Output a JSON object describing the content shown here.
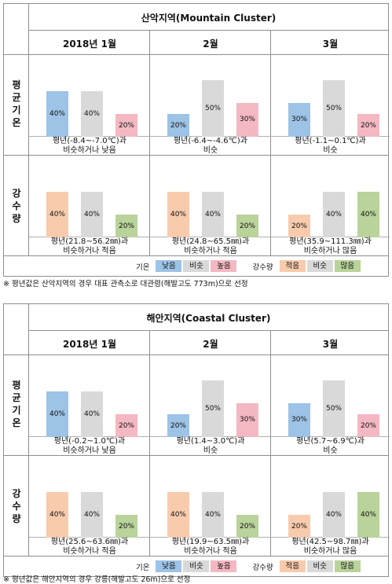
{
  "colors": {
    "low": "#9dc3e6",
    "similar": "#d9d9d9",
    "high": "#f4b8c2",
    "small": "#f8cbad",
    "large": "#b9d39b"
  },
  "legend": {
    "temp_title": "기온",
    "temp_items": [
      "낮음",
      "비슷",
      "높음"
    ],
    "rain_title": "강수량",
    "rain_items": [
      "적음",
      "비슷",
      "많음"
    ]
  },
  "row_labels": {
    "temp": [
      "평",
      "균",
      "기",
      "온"
    ],
    "rain": [
      "강",
      "수",
      "량"
    ]
  },
  "months": [
    "2018년  1월",
    "2월",
    "3월"
  ],
  "sections": [
    {
      "title": "산악지역(Mountain  Cluster)",
      "temp_captions": [
        [
          "평년(-8.4~-7.0℃)과",
          "비슷하거나 낮음"
        ],
        [
          "평년(-6.4~-4.6℃)과",
          "비슷"
        ],
        [
          "평년(-1.1~0.1℃)과",
          "비슷"
        ]
      ],
      "rain_captions": [
        [
          "평년(21.8~56.2㎜)과",
          "비슷하거나  적음"
        ],
        [
          "평년(24.8~65.5㎜)과",
          "비슷하거나  적음"
        ],
        [
          "평년(35.9~111.3㎜)과",
          "비슷하거나  많음"
        ]
      ],
      "note": "※ 평년값은 산악지역의 경우 대표 관측소로 대관령(해발고도 773m)으로 선정"
    },
    {
      "title": "해안지역(Coastal Cluster)",
      "temp_captions": [
        [
          "평년(-0.2~1.0℃)과",
          "비슷하거나 낮음"
        ],
        [
          "평년(1.4~3.0℃)과",
          "비슷"
        ],
        [
          "평년(5.7~6.9℃)과",
          "비슷"
        ]
      ],
      "rain_captions": [
        [
          "평년(25.6~63.6㎜)과",
          "비슷하거나  적음"
        ],
        [
          "평년(19.9~63.5㎜)과",
          "비슷하거나  적음"
        ],
        [
          "평년(42.5~98.7㎜)과",
          "비슷하거나  많음"
        ]
      ],
      "note": "※ 평년값은 해안지역의 경우 강릉(해발고도 26m)으로 선정"
    }
  ],
  "chart_data": [
    {
      "type": "bar",
      "title": "산악지역(Mountain  Cluster)",
      "panel": "기온",
      "categories": [
        "낮음",
        "비슷",
        "높음"
      ],
      "unit": "%",
      "series": [
        {
          "name": "2018년  1월",
          "values": [
            40,
            40,
            20
          ]
        },
        {
          "name": "2월",
          "values": [
            20,
            50,
            30
          ]
        },
        {
          "name": "3월",
          "values": [
            30,
            50,
            20
          ]
        }
      ]
    },
    {
      "type": "bar",
      "title": "산악지역(Mountain  Cluster)",
      "panel": "강수량",
      "categories": [
        "적음",
        "비슷",
        "많음"
      ],
      "unit": "%",
      "series": [
        {
          "name": "2018년  1월",
          "values": [
            40,
            40,
            20
          ]
        },
        {
          "name": "2월",
          "values": [
            40,
            40,
            20
          ]
        },
        {
          "name": "3월",
          "values": [
            20,
            40,
            40
          ]
        }
      ]
    },
    {
      "type": "bar",
      "title": "해안지역(Coastal Cluster)",
      "panel": "기온",
      "categories": [
        "낮음",
        "비슷",
        "높음"
      ],
      "unit": "%",
      "series": [
        {
          "name": "2018년  1월",
          "values": [
            40,
            40,
            20
          ]
        },
        {
          "name": "2월",
          "values": [
            20,
            50,
            30
          ]
        },
        {
          "name": "3월",
          "values": [
            30,
            50,
            20
          ]
        }
      ]
    },
    {
      "type": "bar",
      "title": "해안지역(Coastal Cluster)",
      "panel": "강수량",
      "categories": [
        "적음",
        "비슷",
        "많음"
      ],
      "unit": "%",
      "series": [
        {
          "name": "2018년  1월",
          "values": [
            40,
            40,
            20
          ]
        },
        {
          "name": "2월",
          "values": [
            40,
            40,
            20
          ]
        },
        {
          "name": "3월",
          "values": [
            20,
            40,
            40
          ]
        }
      ]
    }
  ]
}
